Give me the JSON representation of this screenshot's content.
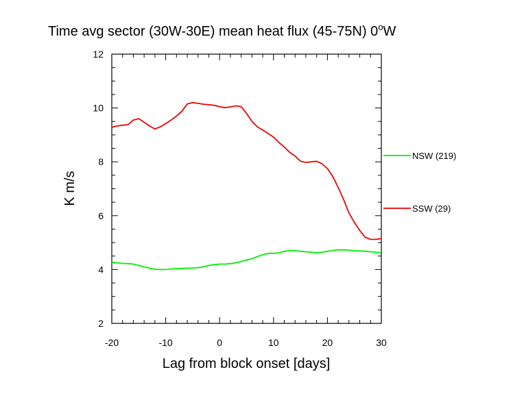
{
  "chart_data": {
    "type": "line",
    "title": "Time avg sector (30W-30E) mean heat flux (45-75N) 0",
    "title_superscript": "o",
    "title_suffix": "W",
    "xlabel": "Lag from block onset [days]",
    "ylabel": "K m/s",
    "xlim": [
      -20,
      30
    ],
    "ylim": [
      2,
      12
    ],
    "xticks": [
      -20,
      -10,
      0,
      10,
      20,
      30
    ],
    "xtick_labels": [
      "-20",
      "-10",
      "0",
      "10",
      "20",
      "30"
    ],
    "yticks": [
      2,
      4,
      6,
      8,
      10,
      12
    ],
    "ytick_labels": [
      "2",
      "4",
      "6",
      "8",
      "10",
      "12"
    ],
    "grid": false,
    "legend_placement": "outside-right",
    "series": [
      {
        "name": "NSW (219)",
        "color": "#00ee00",
        "x": [
          -20,
          -19,
          -18,
          -17,
          -16,
          -15,
          -14,
          -13,
          -12,
          -11,
          -10,
          -9,
          -8,
          -7,
          -6,
          -5,
          -4,
          -3,
          -2,
          -1,
          0,
          1,
          2,
          3,
          4,
          5,
          6,
          7,
          8,
          9,
          10,
          11,
          12,
          13,
          14,
          15,
          16,
          17,
          18,
          19,
          20,
          21,
          22,
          23,
          24,
          25,
          26,
          27,
          28,
          29,
          30
        ],
        "values": [
          4.27,
          4.25,
          4.23,
          4.22,
          4.2,
          4.15,
          4.1,
          4.05,
          4.01,
          4.0,
          4.0,
          4.02,
          4.03,
          4.04,
          4.05,
          4.05,
          4.07,
          4.1,
          4.15,
          4.18,
          4.2,
          4.2,
          4.22,
          4.25,
          4.3,
          4.35,
          4.4,
          4.48,
          4.55,
          4.6,
          4.6,
          4.62,
          4.68,
          4.7,
          4.7,
          4.68,
          4.66,
          4.64,
          4.62,
          4.64,
          4.68,
          4.71,
          4.73,
          4.73,
          4.72,
          4.7,
          4.69,
          4.68,
          4.66,
          4.64,
          4.61
        ]
      },
      {
        "name": "SSW (29)",
        "color": "#ee0000",
        "x": [
          -20,
          -19,
          -18,
          -17,
          -16,
          -15,
          -14,
          -13,
          -12,
          -11,
          -10,
          -9,
          -8,
          -7,
          -6,
          -5,
          -4,
          -3,
          -2,
          -1,
          0,
          1,
          2,
          3,
          4,
          5,
          6,
          7,
          8,
          9,
          10,
          11,
          12,
          13,
          14,
          15,
          16,
          17,
          18,
          19,
          20,
          21,
          22,
          23,
          24,
          25,
          26,
          27,
          28,
          29,
          30
        ],
        "values": [
          9.28,
          9.33,
          9.36,
          9.38,
          9.55,
          9.6,
          9.47,
          9.33,
          9.22,
          9.3,
          9.42,
          9.55,
          9.7,
          9.88,
          10.15,
          10.2,
          10.17,
          10.14,
          10.12,
          10.1,
          10.05,
          10.01,
          10.04,
          10.08,
          10.05,
          9.8,
          9.5,
          9.3,
          9.18,
          9.05,
          8.92,
          8.72,
          8.55,
          8.35,
          8.22,
          8.02,
          7.98,
          8.0,
          8.02,
          7.93,
          7.75,
          7.45,
          7.05,
          6.6,
          6.1,
          5.75,
          5.45,
          5.2,
          5.12,
          5.12,
          5.15
        ]
      }
    ]
  }
}
